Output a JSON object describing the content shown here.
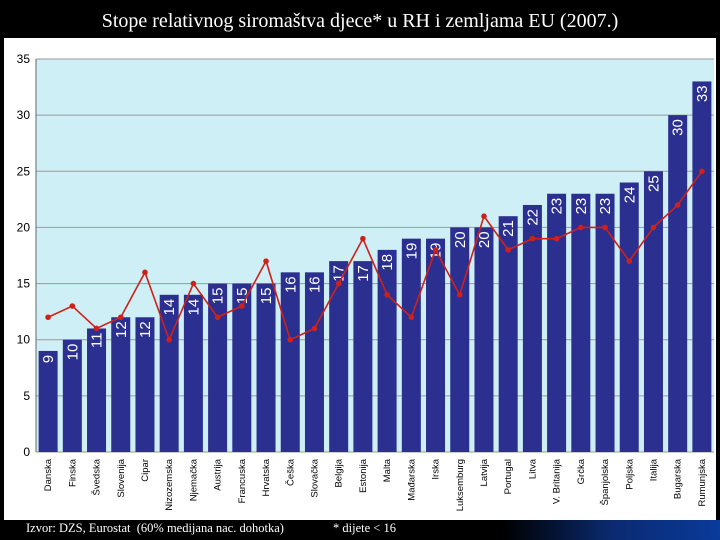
{
  "title": "Stope relativnog siromaštva djece* u RH i zemljama EU (2007.)",
  "footer": {
    "source": "Izvor: DZS, Eurostat  (60% medijana nac. dohotka)",
    "note": "* dijete < 16"
  },
  "colors": {
    "bar": "#2b2f8f",
    "line": "#d0201a",
    "plot_bg": "#cdeff5",
    "outer_bg": "#ffffff"
  },
  "chart_data": {
    "type": "bar",
    "title": "Stope relativnog siromaštva djece* u RH i zemljama EU (2007.)",
    "ylim": [
      0,
      35
    ],
    "yticks": [
      0,
      5,
      10,
      15,
      20,
      25,
      30,
      35
    ],
    "grid": true,
    "categories": [
      "Danska",
      "Finska",
      "Švedska",
      "Slovenija",
      "Cipar",
      "Nizozemska",
      "Njemačka",
      "Austrija",
      "Francuska",
      "Hrvatska",
      "Češka",
      "Slovačka",
      "Belgija",
      "Estonija",
      "Malta",
      "Mađarska",
      "Irska",
      "Luksemburg",
      "Latvija",
      "Portugal",
      "Litva",
      "V. Britanija",
      "Grčka",
      "Španjolska",
      "Poljska",
      "Italija",
      "Bugarska",
      "Rumunjska"
    ],
    "series": [
      {
        "kind": "bar",
        "values": [
          9,
          10,
          11,
          12,
          12,
          14,
          14,
          15,
          15,
          15,
          16,
          16,
          17,
          17,
          18,
          19,
          19,
          20,
          20,
          21,
          22,
          23,
          23,
          23,
          24,
          25,
          30,
          33
        ]
      },
      {
        "kind": "line",
        "values": [
          12,
          13,
          11,
          12,
          16,
          10,
          15,
          12,
          13,
          17,
          10,
          11,
          15,
          19,
          14,
          12,
          18,
          14,
          21,
          18,
          19,
          19,
          20,
          20,
          17,
          20,
          22,
          25
        ]
      }
    ]
  }
}
